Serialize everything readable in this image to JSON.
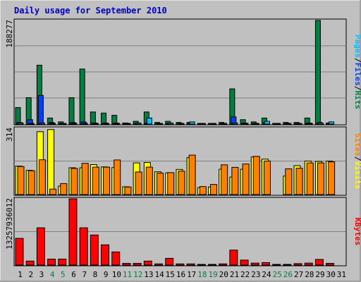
{
  "chart_data": {
    "type": "bar",
    "title": "Daily usage for September 2010",
    "categories": [
      "1",
      "2",
      "3",
      "4",
      "5",
      "6",
      "7",
      "8",
      "9",
      "10",
      "11",
      "12",
      "13",
      "14",
      "15",
      "16",
      "17",
      "18",
      "19",
      "20",
      "21",
      "22",
      "23",
      "24",
      "25",
      "26",
      "27",
      "28",
      "29",
      "30",
      "31"
    ],
    "weekend_days": [
      4,
      5,
      11,
      12,
      18,
      19,
      25,
      26
    ],
    "colors": {
      "background": "#c0c0c0",
      "title": "#0000c0",
      "weekday_label": "#000000",
      "weekend_label": "#008040",
      "hits": "#008040",
      "files": "#0040ff",
      "pages": "#00c0ff",
      "visits": "#ffff00",
      "sites": "#ff8000",
      "kbytes": "#ff0000"
    },
    "panels": [
      {
        "id": "hits-files-pages",
        "ymax_label": "188277",
        "ymax": 188277,
        "legend": [
          {
            "text": "Pages",
            "color": "#00c0ff"
          },
          {
            "text": "/",
            "color": "#000000"
          },
          {
            "text": "Files",
            "color": "#0040ff"
          },
          {
            "text": "/",
            "color": "#000000"
          },
          {
            "text": "Hits",
            "color": "#008040"
          }
        ],
        "series": [
          {
            "name": "Hits",
            "color": "#008040",
            "values": [
              30000,
              48000,
              107000,
              11000,
              4000,
              48000,
              100000,
              22000,
              20000,
              16000,
              2000,
              5000,
              22000,
              3000,
              5000,
              3000,
              3000,
              1000,
              1000,
              3000,
              64000,
              8000,
              4000,
              11000,
              1000,
              3000,
              3000,
              11000,
              188277,
              2000,
              0
            ]
          },
          {
            "name": "Files",
            "color": "#0040ff",
            "values": [
              3000,
              8000,
              52000,
              3000,
              1000,
              3000,
              4000,
              2000,
              2000,
              2000,
              500,
              1000,
              2000,
              500,
              1000,
              500,
              1000,
              500,
              500,
              1000,
              13000,
              2000,
              1000,
              3000,
              500,
              1000,
              1000,
              2000,
              3000,
              1000,
              0
            ]
          },
          {
            "name": "Pages",
            "color": "#00c0ff",
            "values": [
              2000,
              1000,
              2000,
              1000,
              500,
              1000,
              1000,
              1000,
              1000,
              1000,
              1000,
              2000,
              11000,
              1000,
              2000,
              1000,
              4000,
              1000,
              500,
              1000,
              2000,
              1000,
              1000,
              5000,
              500,
              1000,
              1000,
              1000,
              2000,
              4000,
              0
            ]
          }
        ]
      },
      {
        "id": "visits-sites",
        "ymax_label": "314",
        "ymax": 314,
        "legend": [
          {
            "text": "Sites",
            "color": "#ff8000"
          },
          {
            "text": "/",
            "color": "#000000"
          },
          {
            "text": "Visits",
            "color": "#ffff00"
          }
        ],
        "series": [
          {
            "name": "Visits",
            "color": "#ffff00",
            "values": [
              135,
              115,
              298,
              308,
              40,
              127,
              127,
              142,
              131,
              128,
              37,
              150,
              152,
              108,
              103,
              119,
              175,
              33,
              36,
              120,
              83,
              120,
              178,
              168,
              0,
              88,
              137,
              159,
              157,
              159,
              0
            ]
          },
          {
            "name": "Sites",
            "color": "#ff8000",
            "values": [
              133,
              113,
              165,
              26,
              52,
              124,
              148,
              130,
              130,
              164,
              36,
              107,
              130,
              102,
              104,
              111,
              187,
              38,
              48,
              141,
              129,
              145,
              181,
              159,
              0,
              122,
              125,
              150,
              150,
              155,
              0
            ]
          }
        ]
      },
      {
        "id": "kbytes",
        "ymax_label": "13257936012",
        "ymax": 13257936012,
        "legend": [
          {
            "text": "KBytes",
            "color": "#ff0000"
          }
        ],
        "series": [
          {
            "name": "KBytes",
            "color": "#ff0000",
            "values": [
              5350000000,
              800000000,
              7460000000,
              1200000000,
              1200000000,
              13257936012,
              7460000000,
              6020000000,
              4050000000,
              2630000000,
              350000000,
              350000000,
              800000000,
              240000000,
              1350000000,
              240000000,
              240000000,
              100000000,
              100000000,
              240000000,
              3000000000,
              1000000000,
              400000000,
              500000000,
              100000000,
              100000000,
              300000000,
              400000000,
              1130000000,
              350000000,
              0
            ]
          }
        ]
      }
    ]
  }
}
